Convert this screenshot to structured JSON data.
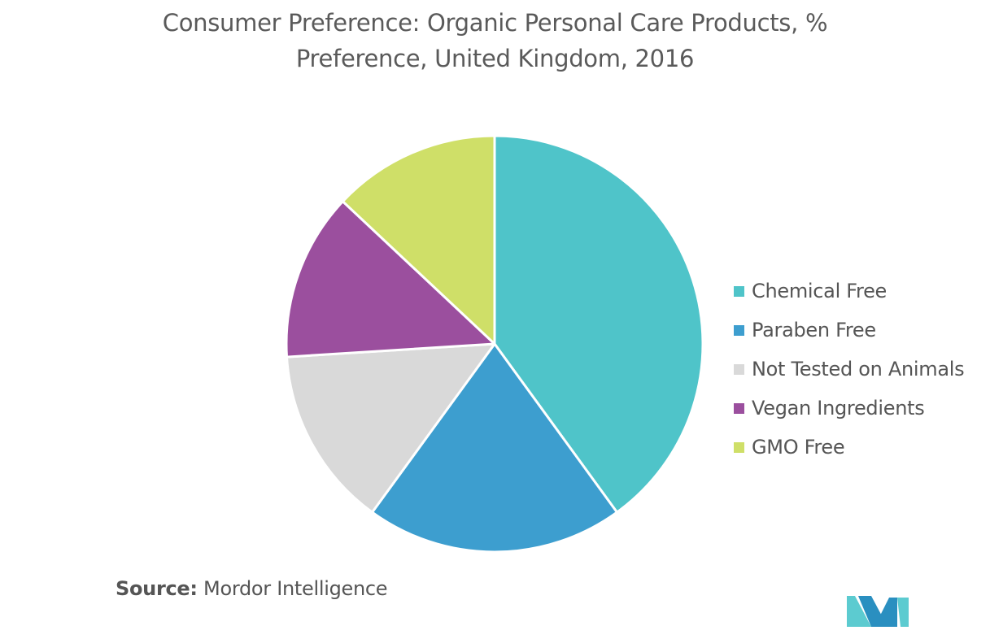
{
  "chart_data": {
    "type": "pie",
    "title_line1": "Consumer Preference: Organic Personal Care Products, %",
    "title_line2": "Preference, United Kingdom, 2016",
    "slices": [
      {
        "label": "Chemical Free",
        "value": 40,
        "color": "#4fc4c9"
      },
      {
        "label": "Paraben Free",
        "value": 20,
        "color": "#3d9ecf"
      },
      {
        "label": "Not Tested on Animals",
        "value": 14,
        "color": "#d9d9d9"
      },
      {
        "label": "Vegan Ingredients",
        "value": 13,
        "color": "#9b4f9e"
      },
      {
        "label": "GMO Free",
        "value": 13,
        "color": "#cfdf68"
      }
    ],
    "legend_position": "right"
  },
  "source": {
    "label": "Source:",
    "text": "Mordor Intelligence"
  },
  "logo": {
    "icon": "mordor-intelligence-logo",
    "colors": [
      "#2a8fc0",
      "#5ccbd0"
    ]
  }
}
